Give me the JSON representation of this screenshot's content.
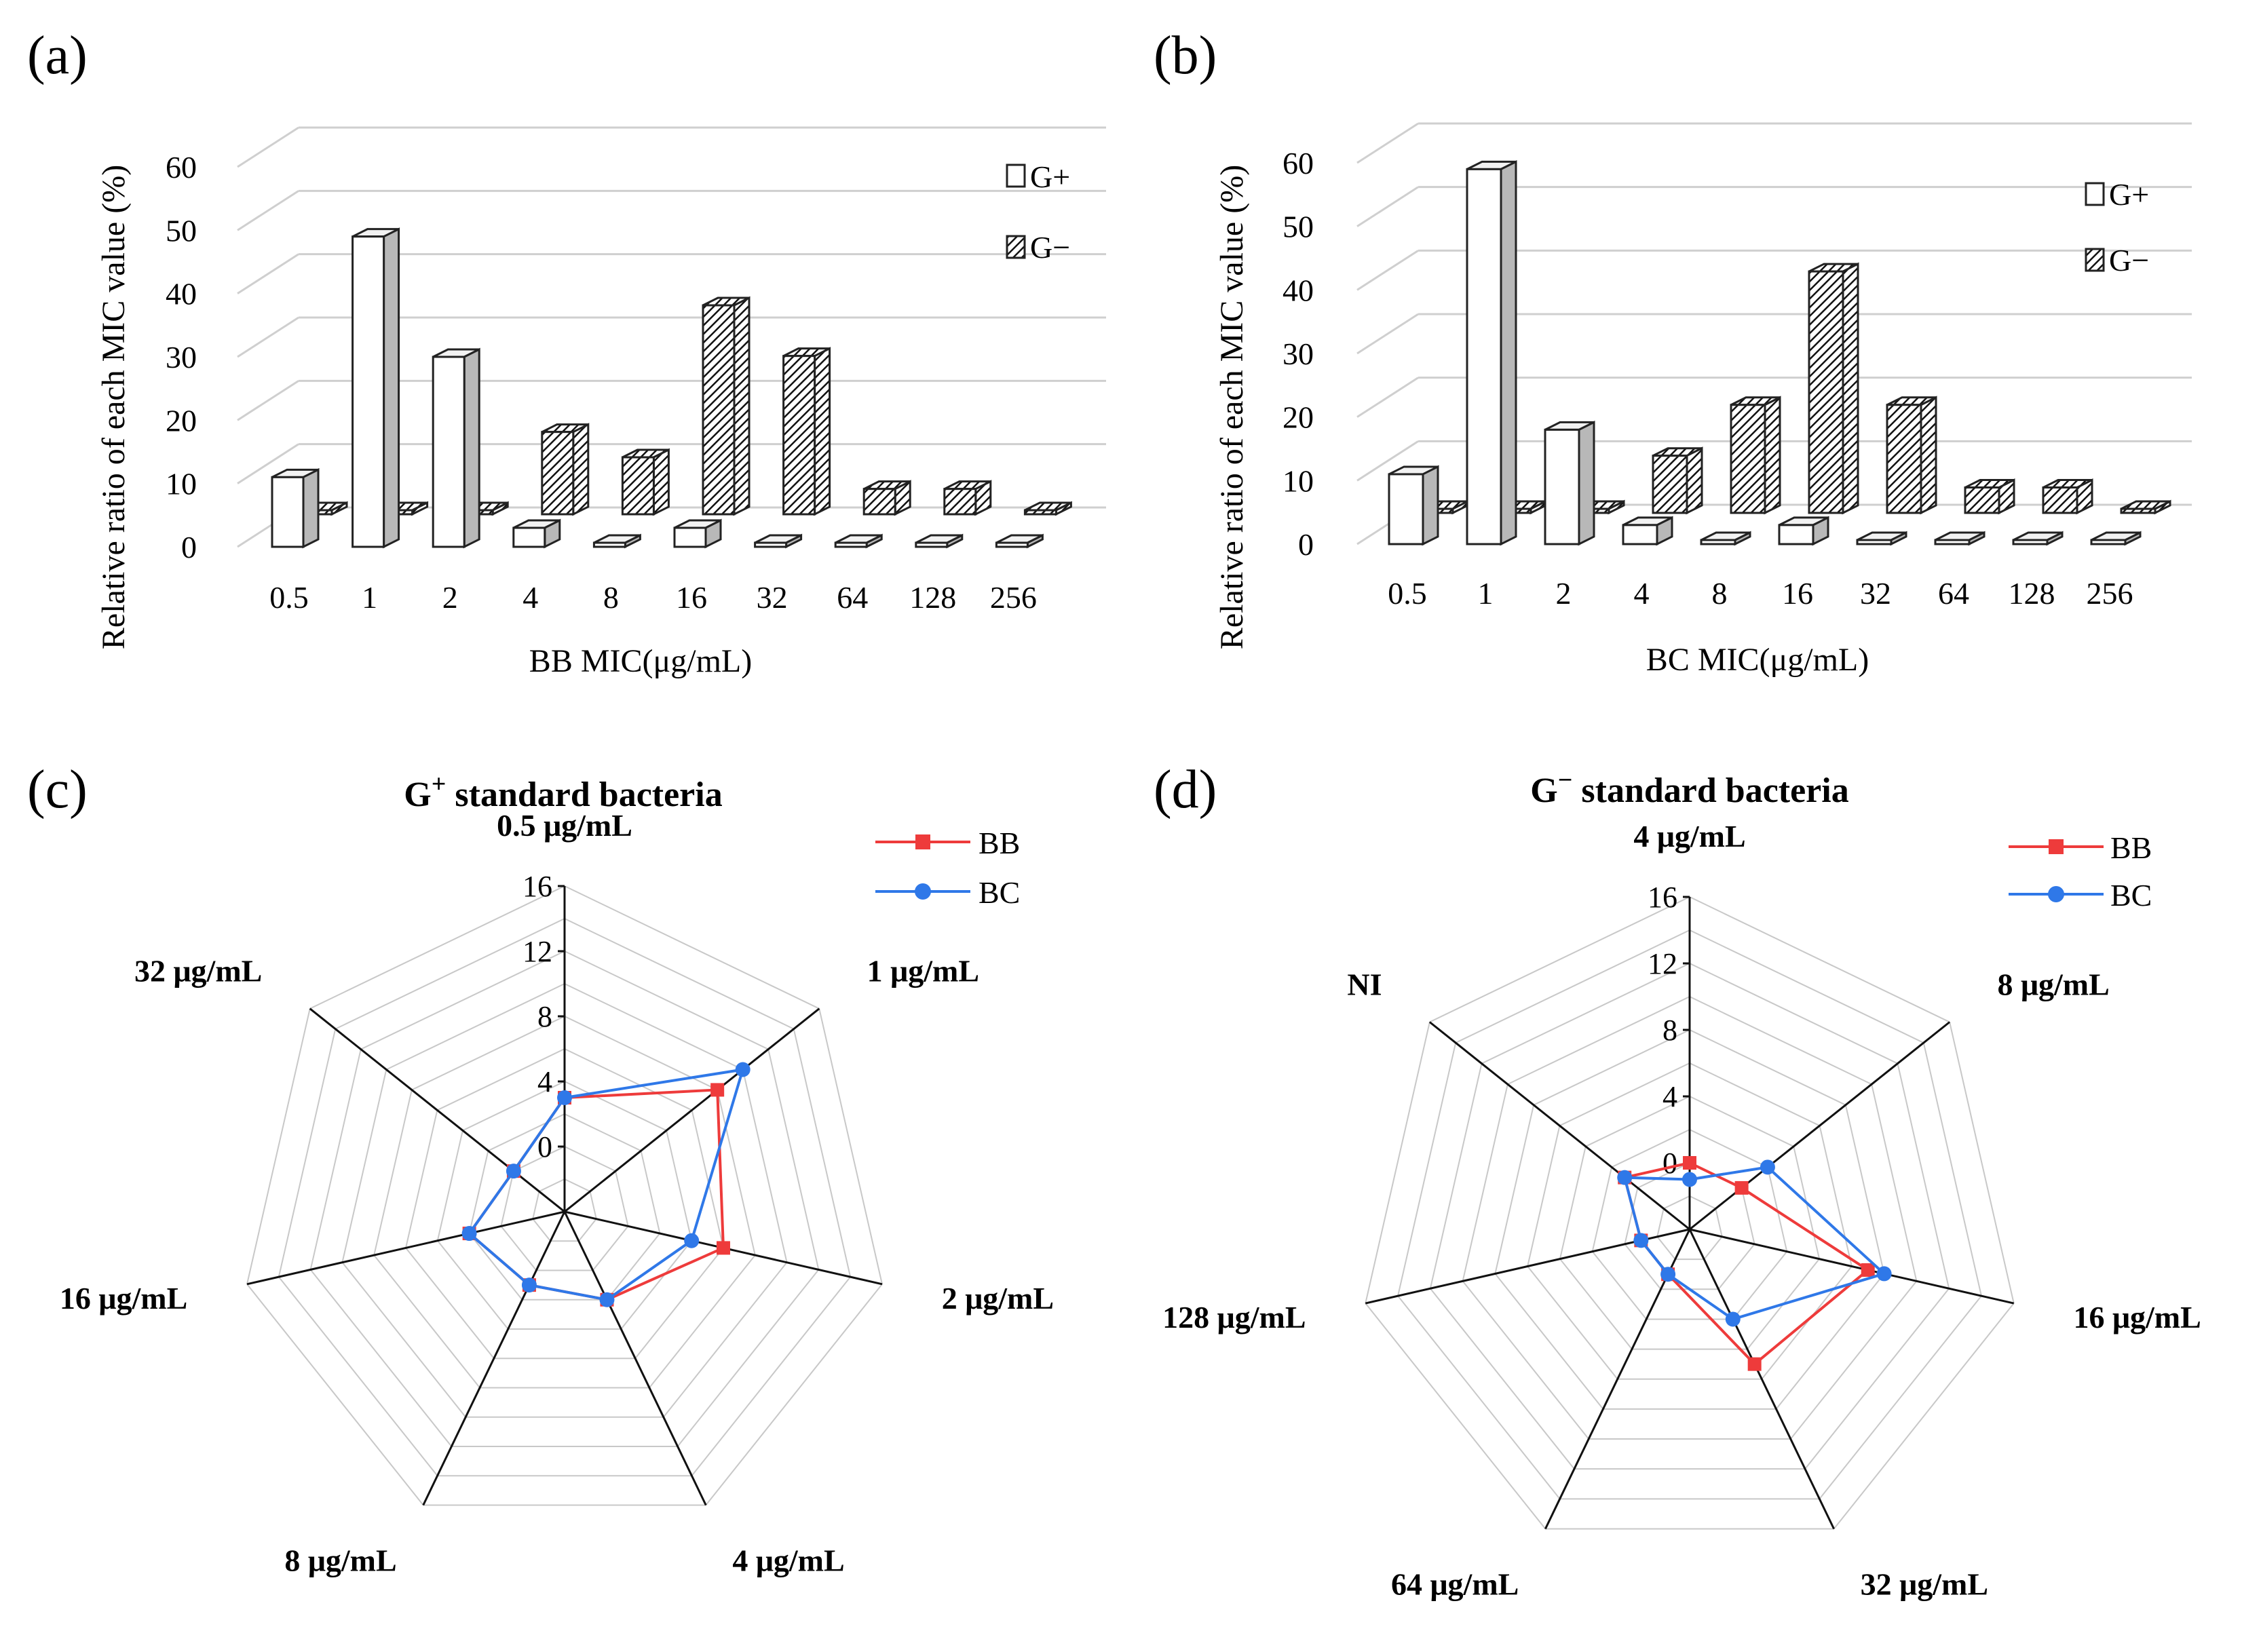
{
  "chart_data": [
    {
      "id": "a",
      "panel_label": "(a)",
      "type": "bar",
      "style": "3d",
      "categories": [
        "0.5",
        "1",
        "2",
        "4",
        "8",
        "16",
        "32",
        "64",
        "128",
        "256"
      ],
      "series": [
        {
          "name": "G+",
          "fill": "white",
          "values": [
            11,
            49,
            30,
            3,
            0,
            3,
            0,
            0,
            0,
            0
          ]
        },
        {
          "name": "G−",
          "fill": "hatched",
          "values": [
            0,
            0,
            0,
            13,
            9,
            33,
            25,
            4,
            4,
            0
          ]
        }
      ],
      "y_ticks": [
        "0",
        "10",
        "20",
        "30",
        "40",
        "50",
        "60"
      ],
      "ylim": [
        0,
        60
      ],
      "xlabel": "BB MIC(μg/mL)",
      "ylabel": "Relative ratio of each MIC value (%)",
      "legend": [
        "G+",
        "G−"
      ],
      "grid": true
    },
    {
      "id": "b",
      "panel_label": "(b)",
      "type": "bar",
      "style": "3d",
      "categories": [
        "0.5",
        "1",
        "2",
        "4",
        "8",
        "16",
        "32",
        "64",
        "128",
        "256"
      ],
      "series": [
        {
          "name": "G+",
          "fill": "white",
          "values": [
            11,
            59,
            18,
            3,
            0,
            3,
            0,
            0,
            0,
            0
          ]
        },
        {
          "name": "G−",
          "fill": "hatched",
          "values": [
            0,
            0,
            0,
            9,
            17,
            38,
            17,
            4,
            4,
            0
          ]
        }
      ],
      "y_ticks": [
        "0",
        "10",
        "20",
        "30",
        "40",
        "50",
        "60"
      ],
      "ylim": [
        0,
        60
      ],
      "xlabel": "BC MIC(μg/mL)",
      "ylabel": "Relative ratio of each MIC value (%)",
      "legend": [
        "G+",
        "G−"
      ],
      "grid": true
    },
    {
      "id": "c",
      "panel_label": "(c)",
      "type": "radar",
      "title_prefix": "G",
      "title_sup": "+",
      "title_rest": " standard bacteria",
      "categories": [
        "0.5 μg/mL",
        "1 μg/mL",
        "2 μg/mL",
        "4 μg/mL",
        "8 μg/mL",
        "16 μg/mL",
        "32 μg/mL"
      ],
      "series": [
        {
          "name": "BB",
          "color": "#ee3b3b",
          "marker": "square",
          "values": [
            3,
            8,
            6,
            2,
            1,
            2,
            0
          ]
        },
        {
          "name": "BC",
          "color": "#2f78e8",
          "marker": "circle",
          "values": [
            3,
            10,
            4,
            2,
            1,
            2,
            0
          ]
        }
      ],
      "r_ticks": [
        "0",
        "4",
        "8",
        "12",
        "16"
      ],
      "rlim": [
        -4,
        16
      ]
    },
    {
      "id": "d",
      "panel_label": "(d)",
      "type": "radar",
      "title_prefix": "G",
      "title_sup": "−",
      "title_rest": " standard bacteria",
      "categories": [
        "4 μg/mL",
        "8 μg/mL",
        "16 μg/mL",
        "32 μg/mL",
        "64 μg/mL",
        "128 μg/mL",
        "NI"
      ],
      "series": [
        {
          "name": "BB",
          "color": "#ee3b3b",
          "marker": "square",
          "values": [
            0,
            0,
            7,
            5,
            -1,
            -1,
            1
          ]
        },
        {
          "name": "BC",
          "color": "#2f78e8",
          "marker": "circle",
          "values": [
            -1,
            2,
            8,
            2,
            -1,
            -1,
            1
          ]
        }
      ],
      "r_ticks": [
        "0",
        "4",
        "8",
        "12",
        "16"
      ],
      "rlim": [
        -4,
        16
      ]
    }
  ]
}
